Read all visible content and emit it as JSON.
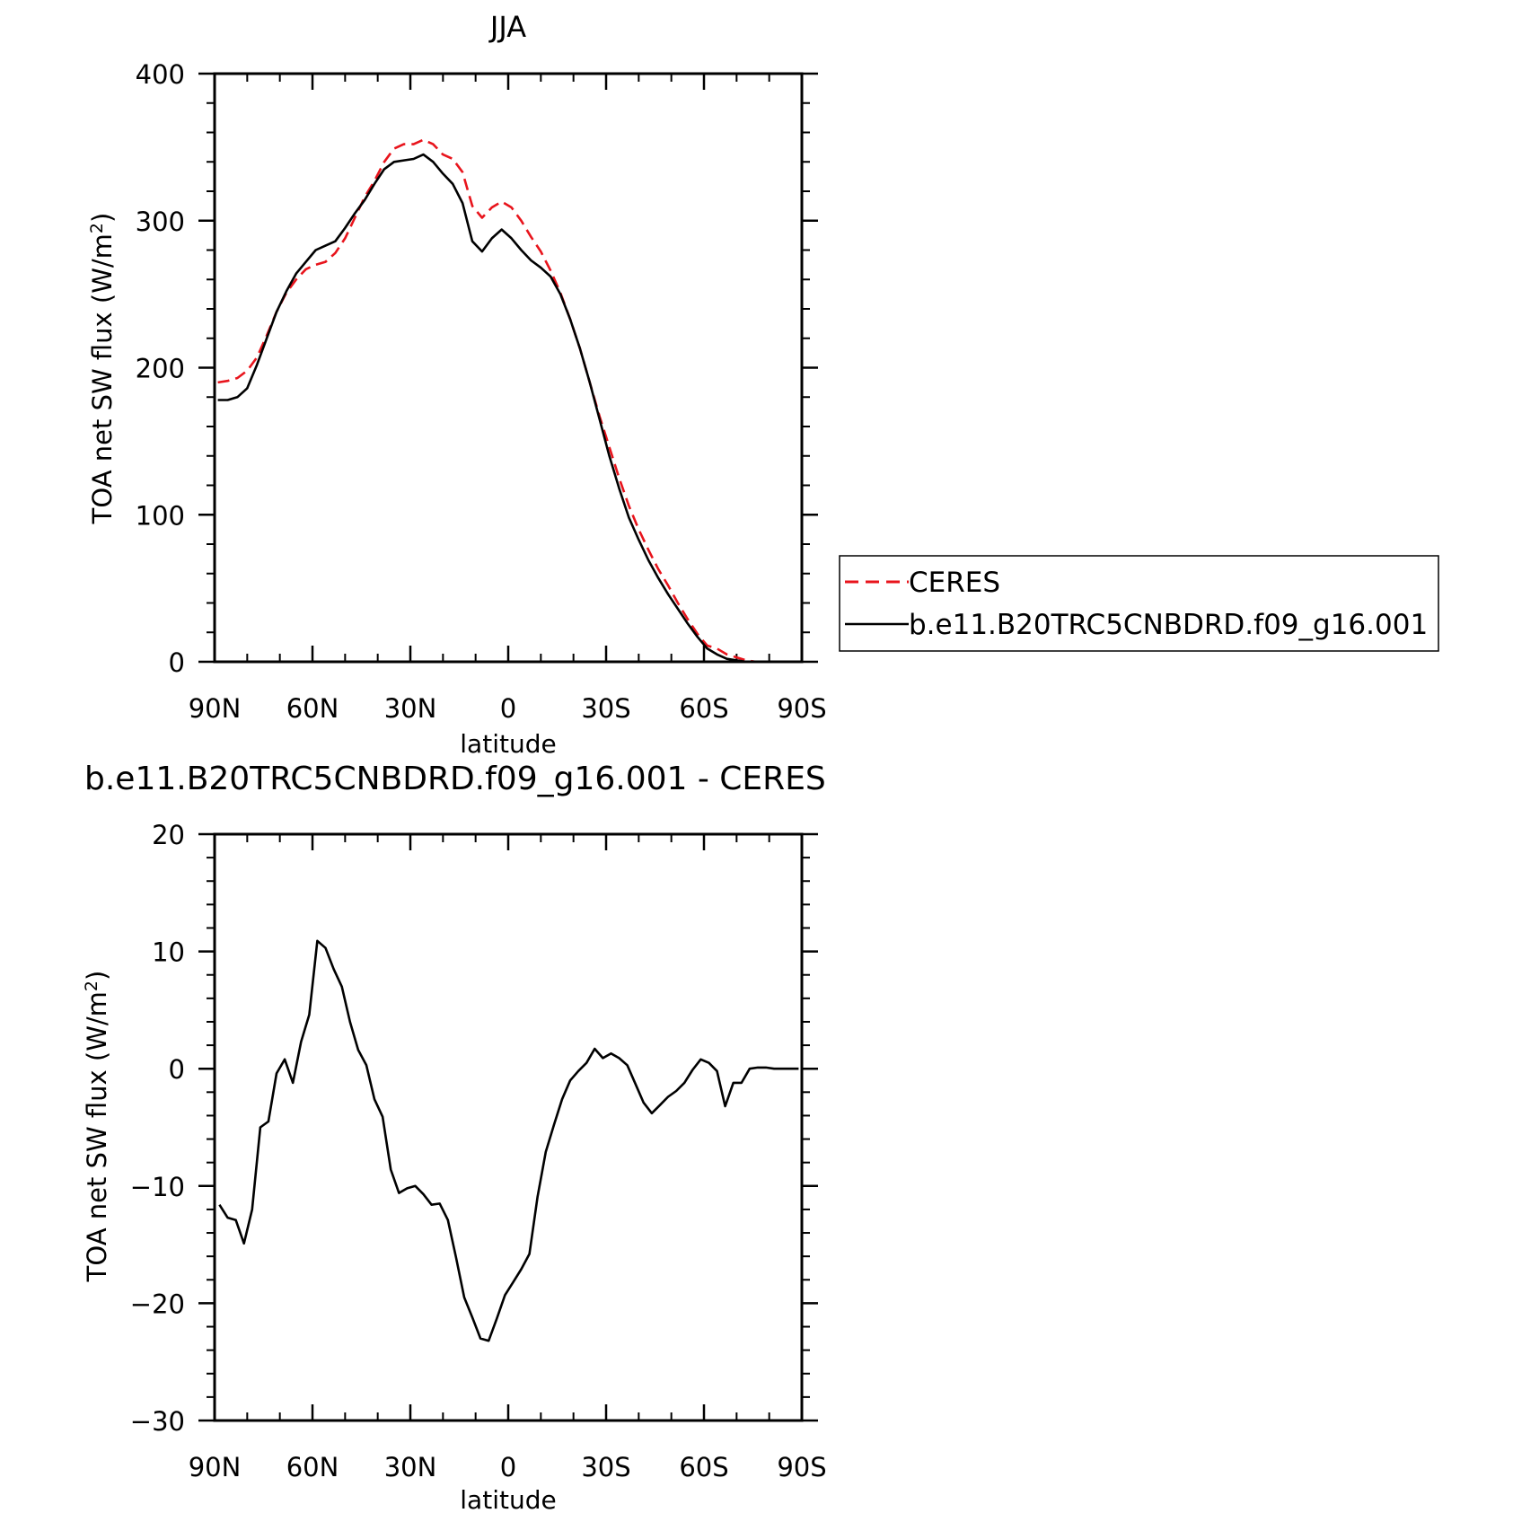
{
  "chart_data": [
    {
      "type": "line",
      "title": "JJA",
      "xlabel": "latitude",
      "ylabel": "TOA net SW flux (W/m²)",
      "ylabel_main": "TOA net SW flux (W/m",
      "ylabel_sup": "2",
      "ylabel_close": ")",
      "xlim": [
        90,
        -90
      ],
      "ylim": [
        0,
        400
      ],
      "x_ticks": [
        90,
        60,
        30,
        0,
        -30,
        -60,
        -90
      ],
      "x_tick_labels": [
        "90N",
        "60N",
        "30N",
        "0",
        "30S",
        "60S",
        "90S"
      ],
      "y_ticks": [
        0,
        100,
        200,
        300,
        400
      ],
      "y_tick_labels": [
        "0",
        "100",
        "200",
        "300",
        "400"
      ],
      "legend_placement": "right",
      "series": [
        {
          "name": "CERES",
          "color": "#e8141c",
          "dash": "dashed",
          "x": [
            89,
            86,
            83,
            80,
            77,
            74,
            71,
            68,
            65,
            62,
            59,
            56,
            53,
            50,
            47,
            44,
            41,
            38,
            35,
            32,
            29,
            26,
            23,
            20,
            17,
            14,
            11,
            8,
            5,
            2,
            -1,
            -4,
            -7,
            -10,
            -13,
            -16,
            -19,
            -22,
            -25,
            -28,
            -31,
            -34,
            -37,
            -40,
            -43,
            -46,
            -49,
            -52,
            -55,
            -58,
            -61,
            -64,
            -67,
            -70,
            -73,
            -76,
            -79,
            -82,
            -85,
            -88
          ],
          "y": [
            190,
            191,
            193,
            198,
            207,
            222,
            238,
            251,
            260,
            267,
            270,
            272,
            278,
            288,
            302,
            316,
            327,
            340,
            349,
            352,
            352,
            355,
            352,
            345,
            342,
            333,
            310,
            302,
            309,
            313,
            309,
            300,
            289,
            279,
            266,
            251,
            233,
            213,
            190,
            167,
            146,
            125,
            106,
            90,
            76,
            63,
            52,
            40,
            29,
            19,
            11,
            9,
            5,
            3,
            1,
            0,
            0,
            0,
            0,
            0
          ]
        },
        {
          "name": "b.e11.B20TRC5CNBDRD.f09_g16.001",
          "color": "#000000",
          "dash": "solid",
          "x": [
            89,
            86,
            83,
            80,
            77,
            74,
            71,
            68,
            65,
            62,
            59,
            56,
            53,
            50,
            47,
            44,
            41,
            38,
            35,
            32,
            29,
            26,
            23,
            20,
            17,
            14,
            11,
            8,
            5,
            2,
            -1,
            -4,
            -7,
            -10,
            -13,
            -16,
            -19,
            -22,
            -25,
            -28,
            -31,
            -34,
            -37,
            -40,
            -43,
            -46,
            -49,
            -52,
            -55,
            -58,
            -61,
            -64,
            -67,
            -70,
            -73,
            -76,
            -79,
            -82,
            -85,
            -88
          ],
          "y": [
            178,
            178,
            180,
            186,
            202,
            220,
            238,
            252,
            264,
            272,
            280,
            283,
            286,
            295,
            305,
            314,
            325,
            335,
            340,
            341,
            342,
            345,
            340,
            332,
            325,
            312,
            286,
            279,
            288,
            294,
            288,
            280,
            273,
            268,
            262,
            250,
            233,
            213,
            190,
            165,
            140,
            118,
            98,
            83,
            69,
            57,
            46,
            36,
            26,
            17,
            9,
            5,
            2,
            1,
            0,
            0,
            0,
            0,
            0,
            0
          ]
        }
      ]
    },
    {
      "type": "line",
      "title": "b.e11.B20TRC5CNBDRD.f09_g16.001 - CERES",
      "xlabel": "latitude",
      "ylabel": "TOA net SW flux (W/m²)",
      "ylabel_main": "TOA net SW flux (W/m",
      "ylabel_sup": "2",
      "ylabel_close": ")",
      "xlim": [
        90,
        -90
      ],
      "ylim": [
        -30,
        20
      ],
      "x_ticks": [
        90,
        60,
        30,
        0,
        -30,
        -60,
        -90
      ],
      "x_tick_labels": [
        "90N",
        "60N",
        "30N",
        "0",
        "30S",
        "60S",
        "90S"
      ],
      "y_ticks": [
        -30,
        -20,
        -10,
        0,
        10,
        20
      ],
      "y_tick_labels": [
        "−30",
        "−20",
        "−10",
        "0",
        "10",
        "20"
      ],
      "series": [
        {
          "color": "#000000",
          "dash": "solid",
          "x": [
            88.5,
            86,
            83.5,
            81,
            78.5,
            76,
            73.5,
            71,
            68.5,
            66,
            63.5,
            61,
            58.5,
            56,
            53.5,
            51,
            48.5,
            46,
            43.5,
            41,
            38.5,
            36,
            33.5,
            31,
            28.5,
            26,
            23.5,
            21,
            18.5,
            16,
            13.5,
            11,
            8.5,
            6,
            3.5,
            1,
            -1.5,
            -4,
            -6.5,
            -9,
            -11.5,
            -14,
            -16.5,
            -19,
            -21.5,
            -24,
            -26.5,
            -29,
            -31.5,
            -34,
            -36.5,
            -39,
            -41.5,
            -44,
            -46.5,
            -49,
            -51.5,
            -54,
            -56.5,
            -59,
            -61.5,
            -64,
            -66.5,
            -69,
            -71.5,
            -74,
            -76.5,
            -79,
            -81.5,
            -84,
            -86.5,
            -89
          ],
          "y": [
            -11.6,
            -12.7,
            -12.9,
            -14.9,
            -12.0,
            -5.0,
            -4.5,
            -0.4,
            0.8,
            -1.2,
            2.3,
            4.6,
            10.9,
            10.3,
            8.5,
            7.0,
            4.0,
            1.6,
            0.3,
            -2.6,
            -4.1,
            -8.6,
            -10.6,
            -10.2,
            -10.0,
            -10.7,
            -11.6,
            -11.5,
            -12.9,
            -16.1,
            -19.5,
            -21.2,
            -23.0,
            -23.2,
            -21.3,
            -19.3,
            -18.2,
            -17.1,
            -15.8,
            -10.9,
            -7.1,
            -4.8,
            -2.6,
            -1.0,
            -0.2,
            0.5,
            1.7,
            0.9,
            1.3,
            0.9,
            0.3,
            -1.3,
            -2.9,
            -3.8,
            -3.1,
            -2.4,
            -1.9,
            -1.2,
            -0.1,
            0.8,
            0.5,
            -0.2,
            -3.2,
            -1.2,
            -1.2,
            0.0,
            0.1,
            0.1,
            0.0,
            0.0,
            0.0,
            0.0
          ]
        }
      ]
    }
  ]
}
